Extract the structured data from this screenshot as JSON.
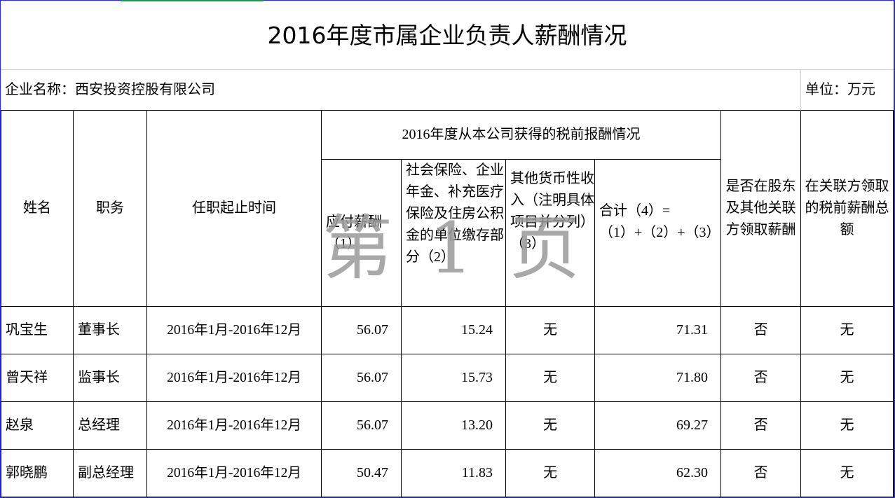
{
  "title": "2016年度市属企业负责人薪酬情况",
  "company_label": "企业名称：西安投资控股有限公司",
  "unit_label": "单位：万元",
  "headers": {
    "name": "姓名",
    "position": "职务",
    "term": "任职起止时间",
    "group": "2016年度从本公司获得的税前报酬情况",
    "salary": "应付薪酬（1）",
    "insurance": "社会保险、企业年金、补充医疗保险及住房公积金的单位缴存部分（2）",
    "other": "其他货币性收入（注明具体项目并分列）（3）",
    "total": "合计（4）=（1）+（2）+（3）",
    "shareholder": "是否在股东及其他关联方领取薪酬",
    "related_total": "在关联方领取的税前薪酬总额"
  },
  "rows": [
    {
      "name": "巩宝生",
      "position": "董事长",
      "term": "2016年1月-2016年12月",
      "salary": "56.07",
      "insurance": "15.24",
      "other": "无",
      "total": "71.31",
      "shareholder": "否",
      "related_total": "无"
    },
    {
      "name": "曾天祥",
      "position": "监事长",
      "term": "2016年1月-2016年12月",
      "salary": "56.07",
      "insurance": "15.73",
      "other": "无",
      "total": "71.80",
      "shareholder": "否",
      "related_total": "无"
    },
    {
      "name": "赵泉",
      "position": "总经理",
      "term": "2016年1月-2016年12月",
      "salary": "56.07",
      "insurance": "13.20",
      "other": "无",
      "total": "69.27",
      "shareholder": "否",
      "related_total": "无"
    },
    {
      "name": "郭晓鹏",
      "position": "副总经理",
      "term": "2016年1月-2016年12月",
      "salary": "50.47",
      "insurance": "11.83",
      "other": "无",
      "total": "62.30",
      "shareholder": "否",
      "related_total": "无"
    }
  ],
  "watermark": "第 1 页"
}
